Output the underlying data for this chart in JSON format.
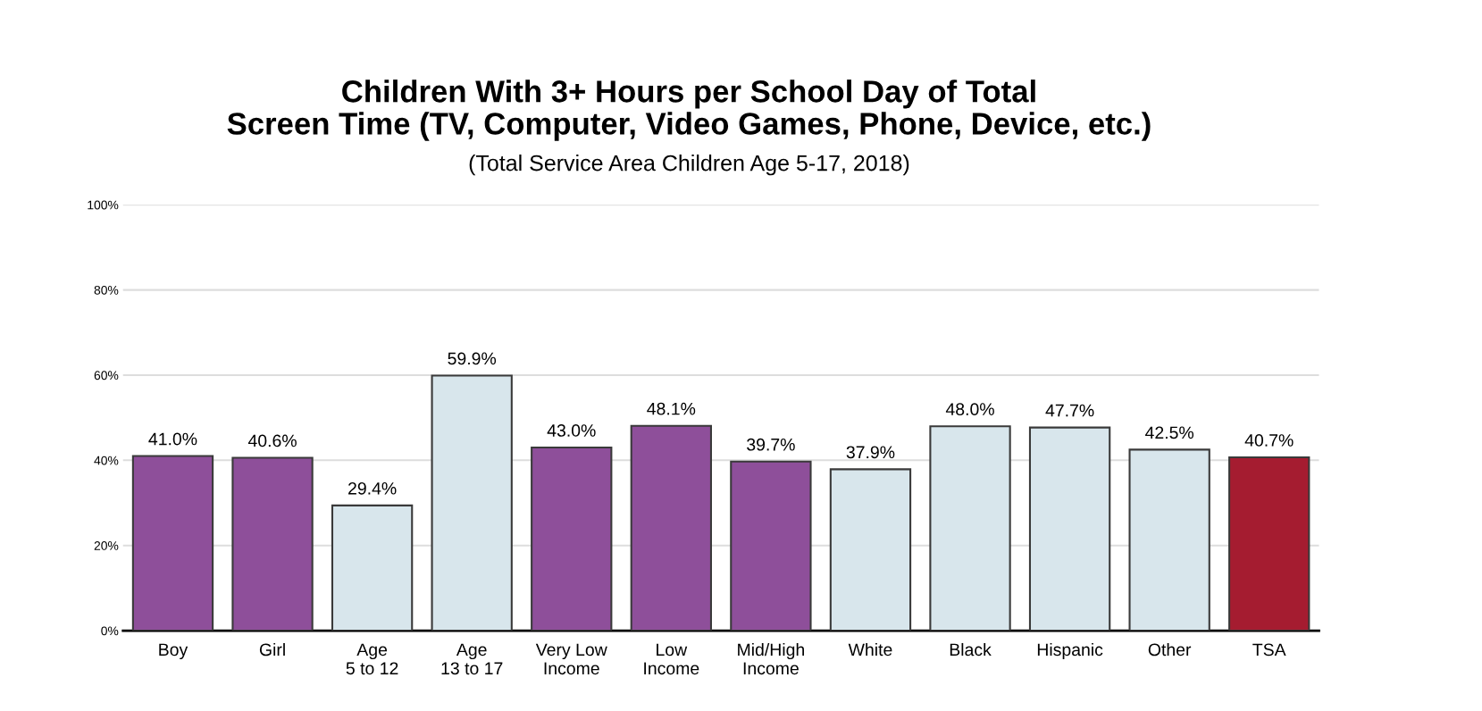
{
  "chart_data": {
    "type": "bar",
    "title": "Children With 3+ Hours per School Day of Total\nScreen Time (TV, Computer, Video Games, Phone, Device, etc.)",
    "subtitle": "(Total Service Area Children Age 5-17, 2018)",
    "categories": [
      "Boy",
      "Girl",
      "Age\n5 to 12",
      "Age\n13 to 17",
      "Very Low\nIncome",
      "Low\nIncome",
      "Mid/High\nIncome",
      "White",
      "Black",
      "Hispanic",
      "Other",
      "TSA"
    ],
    "values": [
      41.0,
      40.6,
      29.4,
      59.9,
      43.0,
      48.1,
      39.7,
      37.9,
      48.0,
      47.7,
      42.5,
      40.7
    ],
    "colors": [
      "#8e4f9a",
      "#8e4f9a",
      "#d8e6ec",
      "#d8e6ec",
      "#8e4f9a",
      "#8e4f9a",
      "#8e4f9a",
      "#d8e6ec",
      "#d8e6ec",
      "#d8e6ec",
      "#d8e6ec",
      "#a51c30"
    ],
    "value_labels": [
      "41.0%",
      "40.6%",
      "29.4%",
      "59.9%",
      "43.0%",
      "48.1%",
      "39.7%",
      "37.9%",
      "48.0%",
      "47.7%",
      "42.5%",
      "40.7%"
    ],
    "ylim": [
      0,
      100
    ],
    "yticks": [
      {
        "value": 0,
        "label": "0%"
      },
      {
        "value": 20,
        "label": "20%"
      },
      {
        "value": 40,
        "label": "40%"
      },
      {
        "value": 60,
        "label": "60%"
      },
      {
        "value": 80,
        "label": "80%"
      },
      {
        "value": 100,
        "label": "100%"
      }
    ],
    "grid": "y",
    "legend": false
  }
}
